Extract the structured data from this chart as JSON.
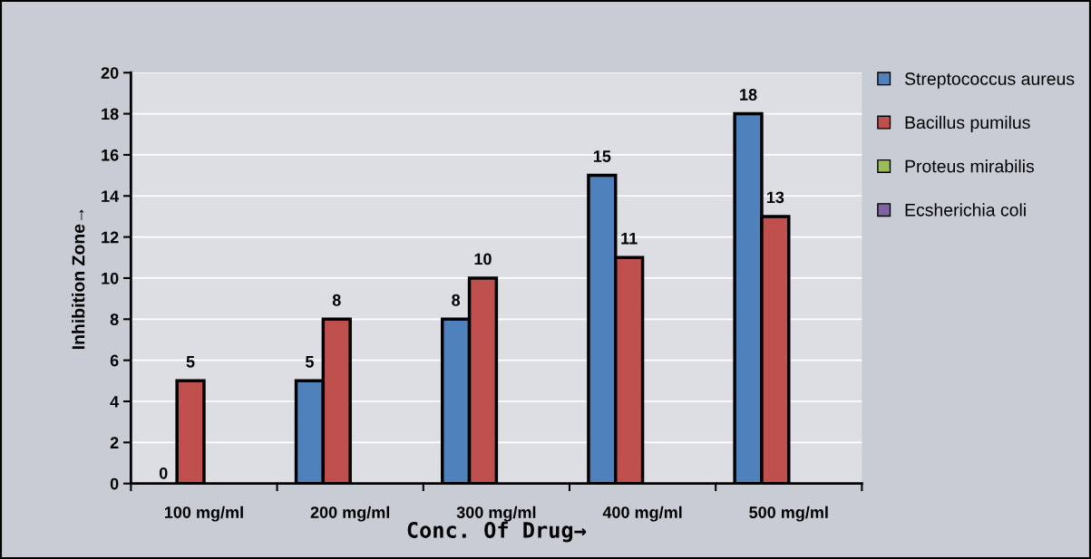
{
  "chart_data": {
    "type": "bar",
    "xlabel": "Conc. Of Drug→",
    "ylabel": "Inhibition Zone→",
    "categories": [
      "100 mg/ml",
      "200 mg/ml",
      "300 mg/ml",
      "400 mg/ml",
      "500 mg/ml"
    ],
    "series": [
      {
        "name": "Streptococcus aureus",
        "color": "#4f81bd",
        "values": [
          0,
          5,
          8,
          15,
          18
        ]
      },
      {
        "name": "Bacillus pumilus",
        "color": "#c0504d",
        "values": [
          5,
          8,
          10,
          11,
          13
        ]
      },
      {
        "name": "Proteus mirabilis",
        "color": "#9bbb59",
        "values": [
          null,
          null,
          null,
          null,
          null
        ]
      },
      {
        "name": "Ecsherichia coli",
        "color": "#8064a2",
        "values": [
          null,
          null,
          null,
          null,
          null
        ]
      }
    ],
    "ylim": [
      0,
      20
    ],
    "yticks": [
      0,
      2,
      4,
      6,
      8,
      10,
      12,
      14,
      16,
      18,
      20
    ],
    "grid": "y",
    "legend": "right",
    "data_labels": true
  }
}
